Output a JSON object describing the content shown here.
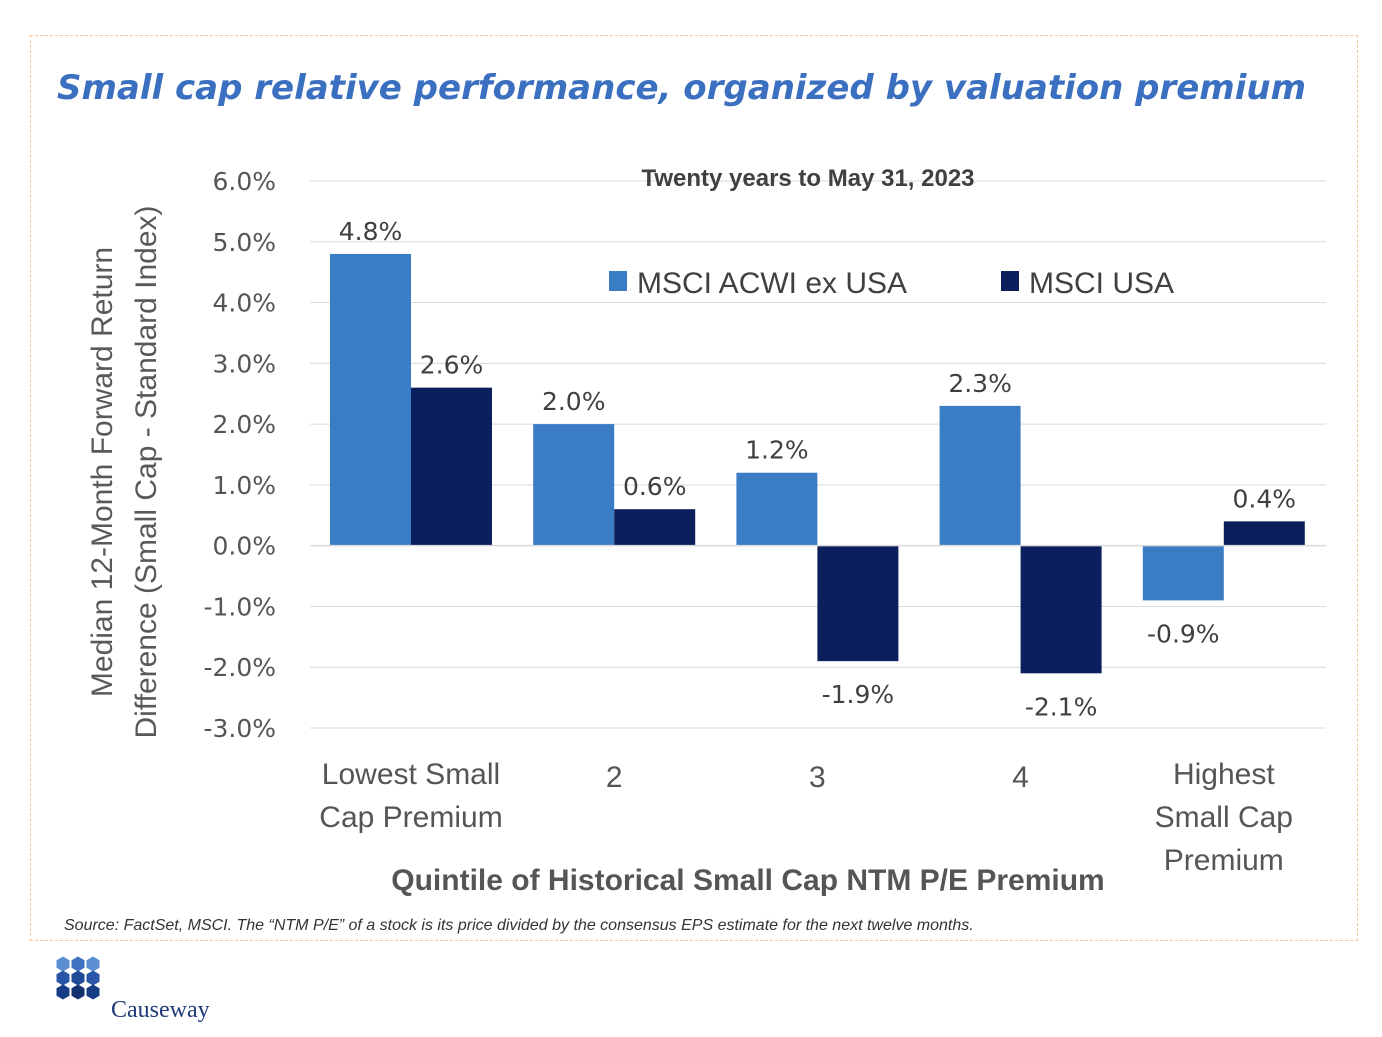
{
  "title": "Small cap relative performance, organized by valuation premium",
  "chart_data": {
    "type": "bar",
    "subtitle": "Twenty years to May 31, 2023",
    "categories": [
      [
        "Lowest Small",
        "Cap Premium"
      ],
      [
        "2"
      ],
      [
        "3"
      ],
      [
        "4"
      ],
      [
        "Highest",
        "Small Cap",
        "Premium"
      ]
    ],
    "series": [
      {
        "name": "MSCI ACWI ex USA",
        "color": "#3b7dc4",
        "values": [
          4.8,
          2.0,
          1.2,
          2.3,
          -0.9
        ],
        "labels": [
          "4.8%",
          "2.0%",
          "1.2%",
          "2.3%",
          "-0.9%"
        ]
      },
      {
        "name": "MSCI USA",
        "color": "#0b1f5c",
        "values": [
          2.6,
          0.6,
          -1.9,
          -2.1,
          0.4
        ],
        "labels": [
          "2.6%",
          "0.6%",
          "-1.9%",
          "-2.1%",
          "0.4%"
        ]
      }
    ],
    "ylabel": [
      "Median 12-Month Forward Return",
      "Difference (Small Cap - Standard Index)"
    ],
    "xlabel": "Quintile of Historical Small Cap NTM P/E Premium",
    "ylim": [
      -3,
      6
    ],
    "yticks": [
      "-3.0%",
      "-2.0%",
      "-1.0%",
      "0.0%",
      "1.0%",
      "2.0%",
      "3.0%",
      "4.0%",
      "5.0%",
      "6.0%"
    ],
    "grid": true,
    "legend": "top-right"
  },
  "source": "Source: FactSet, MSCI. The “NTM P/E” of a stock is its price divided by the consensus EPS estimate for the next twelve months.",
  "logo": {
    "name": "Causeway",
    "color": "#1e3a78"
  }
}
